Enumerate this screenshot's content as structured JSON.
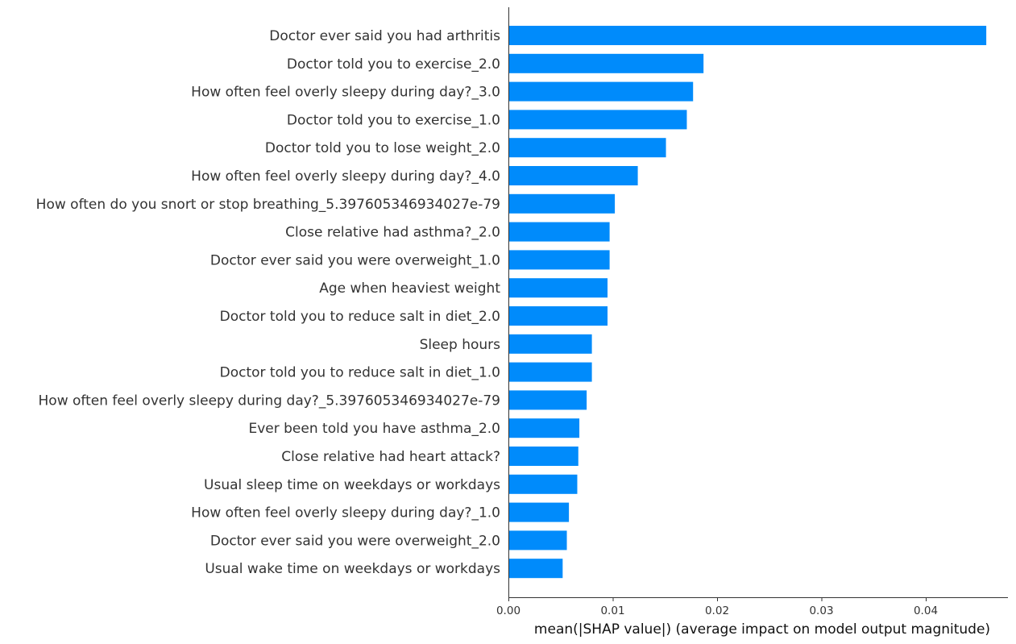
{
  "chart_data": {
    "type": "bar",
    "orientation": "horizontal",
    "title": "",
    "xlabel": "mean(|SHAP value|) (average impact on model output magnitude)",
    "ylabel": "",
    "xlim": [
      0,
      0.048
    ],
    "xticks": [
      {
        "value": 0,
        "label": "0.00"
      },
      {
        "value": 0.01,
        "label": "0.01"
      },
      {
        "value": 0.02,
        "label": "0.02"
      },
      {
        "value": 0.03,
        "label": "0.03"
      },
      {
        "value": 0.04,
        "label": "0.04"
      }
    ],
    "grid": false,
    "bar_color": "#008bfb",
    "categories": [
      "Doctor ever said you had arthritis",
      "Doctor told you to exercise_2.0",
      "How often feel overly sleepy during day?_3.0",
      "Doctor told you to exercise_1.0",
      "Doctor told you to lose weight_2.0",
      "How often feel overly sleepy during day?_4.0",
      "How often do you snort or stop breathing_5.397605346934027e-79",
      "Close relative had asthma?_2.0",
      "Doctor ever said you were overweight_1.0",
      "Age when heaviest weight",
      "Doctor told you to reduce salt in diet_2.0",
      "Sleep hours",
      "Doctor told you to reduce salt in diet_1.0",
      "How often feel overly sleepy during day?_5.397605346934027e-79",
      "Ever been told you have asthma_2.0",
      "Close relative had heart attack?",
      "Usual sleep time on weekdays or workdays",
      "How often feel overly sleepy during day?_1.0",
      "Doctor ever said you were overweight_2.0",
      "Usual wake time on weekdays or workdays"
    ],
    "values": [
      0.0458,
      0.0187,
      0.0177,
      0.0171,
      0.0151,
      0.0124,
      0.0102,
      0.0097,
      0.0097,
      0.0095,
      0.0095,
      0.008,
      0.008,
      0.0075,
      0.0068,
      0.0067,
      0.0066,
      0.0058,
      0.0056,
      0.0052
    ]
  }
}
